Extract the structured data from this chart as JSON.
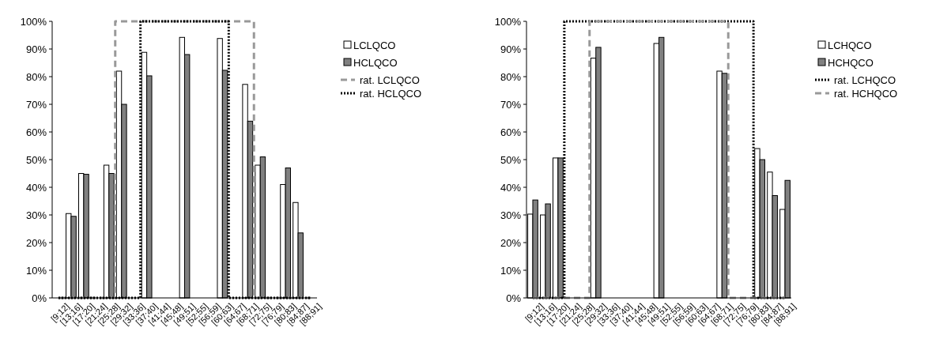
{
  "chart_data": [
    {
      "type": "bar",
      "categories": [
        "[9;12]",
        "[13;16]",
        "[17;20]",
        "[21;24]",
        "[25;28]",
        "[29;32]",
        "[33;36]",
        "[37;40]",
        "[41;44]",
        "[45;48]",
        "[49;51]",
        "[52;55]",
        "[56;59]",
        "[60;63]",
        "[64;67]",
        "[68;71]",
        "[72;75]",
        "[76;79]",
        "[80;83]",
        "[84;87]",
        "[88;91]"
      ],
      "series": [
        {
          "name": "LCLQCO",
          "color": "#ffffff",
          "values": [
            null,
            30.5,
            45,
            null,
            48,
            82,
            null,
            88.8,
            null,
            null,
            94.2,
            null,
            null,
            93.8,
            null,
            77.2,
            48,
            null,
            41,
            34.5,
            null
          ]
        },
        {
          "name": "HCLQCO",
          "color": "#808080",
          "values": [
            null,
            29.5,
            44.7,
            null,
            45,
            70,
            null,
            80.3,
            null,
            null,
            88,
            null,
            null,
            82.3,
            null,
            63.9,
            51,
            null,
            47,
            23.5,
            null
          ]
        },
        {
          "name": "rat. LCLQCO",
          "type": "step",
          "color": "#999999",
          "line_style": "dashed",
          "values": [
            0,
            0,
            0,
            0,
            0,
            100,
            100,
            100,
            100,
            100,
            100,
            100,
            100,
            100,
            100,
            100,
            0,
            0,
            0,
            0,
            0
          ]
        },
        {
          "name": "rat. HCLQCO",
          "type": "step",
          "color": "#000000",
          "line_style": "dotted",
          "values": [
            0,
            0,
            0,
            0,
            0,
            0,
            0,
            100,
            100,
            100,
            100,
            100,
            100,
            100,
            0,
            0,
            0,
            0,
            0,
            0,
            0
          ]
        }
      ],
      "ylim": [
        0,
        100
      ],
      "yticks": [
        {
          "value": 0,
          "label": "0%"
        },
        {
          "value": 10,
          "label": "10%"
        },
        {
          "value": 20,
          "label": "20%"
        },
        {
          "value": 30,
          "label": "30%"
        },
        {
          "value": 40,
          "label": "40%"
        },
        {
          "value": 50,
          "label": "50%"
        },
        {
          "value": 60,
          "label": "60%"
        },
        {
          "value": 70,
          "label": "70%"
        },
        {
          "value": 80,
          "label": "80%"
        },
        {
          "value": 90,
          "label": "90%"
        },
        {
          "value": 100,
          "label": "100%"
        }
      ],
      "grid": false,
      "legend": "right"
    },
    {
      "type": "bar",
      "categories": [
        "[9;12]",
        "[13;16]",
        "[17;20]",
        "[21;24]",
        "[25;28]",
        "[29;32]",
        "[33;36]",
        "[37;40]",
        "[41;44]",
        "[45;48]",
        "[49;51]",
        "[52;55]",
        "[56;59]",
        "[60;63]",
        "[64;67]",
        "[68;71]",
        "[72;75]",
        "[76;79]",
        "[80;83]",
        "[84;87]",
        "[88;91]"
      ],
      "series": [
        {
          "name": "LCHQCO",
          "color": "#ffffff",
          "values": [
            30.3,
            30,
            50.6,
            null,
            null,
            86.7,
            null,
            null,
            null,
            null,
            92,
            null,
            null,
            null,
            null,
            82,
            null,
            null,
            54,
            45.5,
            32
          ]
        },
        {
          "name": "HCHQCO",
          "color": "#808080",
          "values": [
            35.4,
            34,
            50.6,
            null,
            null,
            90.6,
            null,
            null,
            null,
            null,
            94.2,
            null,
            null,
            null,
            null,
            81.2,
            null,
            null,
            50,
            37,
            42.5
          ]
        },
        {
          "name": "rat. LCHQCO",
          "type": "step",
          "color": "#000000",
          "line_style": "dotted",
          "values": [
            0,
            0,
            0,
            100,
            100,
            100,
            100,
            100,
            100,
            100,
            100,
            100,
            100,
            100,
            100,
            100,
            100,
            100,
            0,
            0,
            0
          ]
        },
        {
          "name": "rat. HCHQCO",
          "type": "step",
          "color": "#999999",
          "line_style": "dashed",
          "values": [
            0,
            0,
            0,
            0,
            0,
            100,
            100,
            100,
            100,
            100,
            100,
            100,
            100,
            100,
            100,
            100,
            0,
            0,
            0,
            0,
            0
          ]
        }
      ],
      "ylim": [
        0,
        100
      ],
      "yticks": [
        {
          "value": 0,
          "label": "0%"
        },
        {
          "value": 10,
          "label": "10%"
        },
        {
          "value": 20,
          "label": "20%"
        },
        {
          "value": 30,
          "label": "30%"
        },
        {
          "value": 40,
          "label": "40%"
        },
        {
          "value": 50,
          "label": "50%"
        },
        {
          "value": 60,
          "label": "60%"
        },
        {
          "value": 70,
          "label": "70%"
        },
        {
          "value": 80,
          "label": "80%"
        },
        {
          "value": 90,
          "label": "90%"
        },
        {
          "value": 100,
          "label": "100%"
        }
      ],
      "grid": false,
      "legend": "right"
    }
  ]
}
